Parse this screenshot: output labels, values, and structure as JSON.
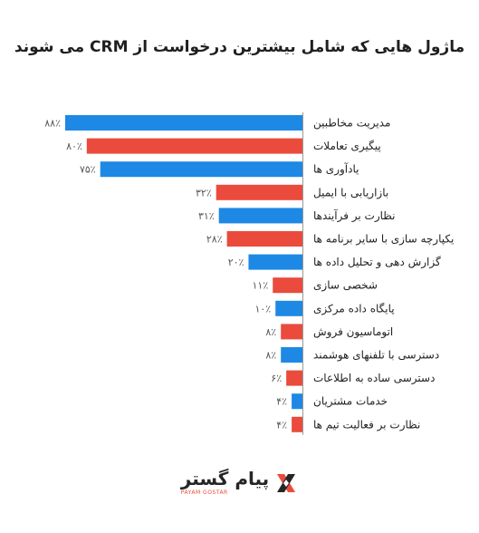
{
  "title": "ماژول هایی که شامل بیشترین درخواست از CRM می شوند",
  "brand": {
    "name": "پیام گستر",
    "subtitle": "PAYAM GOSTAR",
    "logo_icon": "payam-gostar-x-logo"
  },
  "colors": {
    "blue": "#1e88e5",
    "red": "#ea4b3c",
    "axis": "#999999"
  },
  "chart_data": {
    "type": "bar",
    "orientation": "horizontal",
    "title": "ماژول هایی که شامل بیشترین درخواست از CRM می شوند",
    "xlim": [
      0,
      88
    ],
    "grid": false,
    "categories": [
      "مدیریت مخاطبین",
      "پیگیری تعاملات",
      "یادآوری ها",
      "بازاریابی با ایمیل",
      "نظارت بر فرآیندها",
      "یکپارچه سازی با سایر برنامه ها",
      "گزارش دهی و تحلیل داده ها",
      "شخصی سازی",
      "پایگاه داده مرکزی",
      "اتوماسیون فروش",
      "دسترسی با تلفنهای هوشمند",
      "دسترسی ساده به اطلاعات",
      "خدمات مشتریان",
      "نظارت بر فعالیت تیم ها"
    ],
    "values": [
      88,
      80,
      75,
      32,
      31,
      28,
      20,
      11,
      10,
      8,
      8,
      6,
      4,
      4
    ],
    "value_labels": [
      "۸۸٪",
      "۸۰٪",
      "۷۵٪",
      "۳۲٪",
      "۳۱٪",
      "۲۸٪",
      "۲۰٪",
      "۱۱٪",
      "۱۰٪",
      "۸٪",
      "۸٪",
      "۶٪",
      "۴٪",
      "۴٪"
    ],
    "bar_colors": [
      "blue",
      "red",
      "blue",
      "red",
      "blue",
      "red",
      "blue",
      "red",
      "blue",
      "red",
      "blue",
      "red",
      "blue",
      "red"
    ]
  }
}
